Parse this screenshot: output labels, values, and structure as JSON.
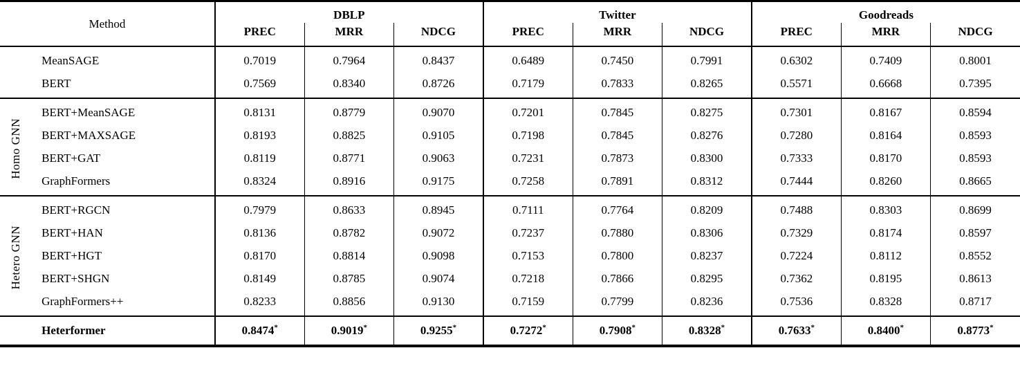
{
  "header": {
    "method_label": "Method",
    "datasets": [
      "DBLP",
      "Twitter",
      "Goodreads"
    ],
    "metrics": [
      "PREC",
      "MRR",
      "NDCG"
    ]
  },
  "star": "*",
  "sections": [
    {
      "group_label": "",
      "rows": [
        {
          "method": "MeanSAGE",
          "bold": false,
          "starred": false,
          "values": [
            "0.7019",
            "0.7964",
            "0.8437",
            "0.6489",
            "0.7450",
            "0.7991",
            "0.6302",
            "0.7409",
            "0.8001"
          ]
        },
        {
          "method": "BERT",
          "bold": false,
          "starred": false,
          "values": [
            "0.7569",
            "0.8340",
            "0.8726",
            "0.7179",
            "0.7833",
            "0.8265",
            "0.5571",
            "0.6668",
            "0.7395"
          ]
        }
      ]
    },
    {
      "group_label": "Homo GNN",
      "rows": [
        {
          "method": "BERT+MeanSAGE",
          "bold": false,
          "starred": false,
          "values": [
            "0.8131",
            "0.8779",
            "0.9070",
            "0.7201",
            "0.7845",
            "0.8275",
            "0.7301",
            "0.8167",
            "0.8594"
          ]
        },
        {
          "method": "BERT+MAXSAGE",
          "bold": false,
          "starred": false,
          "values": [
            "0.8193",
            "0.8825",
            "0.9105",
            "0.7198",
            "0.7845",
            "0.8276",
            "0.7280",
            "0.8164",
            "0.8593"
          ]
        },
        {
          "method": "BERT+GAT",
          "bold": false,
          "starred": false,
          "values": [
            "0.8119",
            "0.8771",
            "0.9063",
            "0.7231",
            "0.7873",
            "0.8300",
            "0.7333",
            "0.8170",
            "0.8593"
          ]
        },
        {
          "method": "GraphFormers",
          "bold": false,
          "starred": false,
          "values": [
            "0.8324",
            "0.8916",
            "0.9175",
            "0.7258",
            "0.7891",
            "0.8312",
            "0.7444",
            "0.8260",
            "0.8665"
          ]
        }
      ]
    },
    {
      "group_label": "Hetero GNN",
      "rows": [
        {
          "method": "BERT+RGCN",
          "bold": false,
          "starred": false,
          "values": [
            "0.7979",
            "0.8633",
            "0.8945",
            "0.7111",
            "0.7764",
            "0.8209",
            "0.7488",
            "0.8303",
            "0.8699"
          ]
        },
        {
          "method": "BERT+HAN",
          "bold": false,
          "starred": false,
          "values": [
            "0.8136",
            "0.8782",
            "0.9072",
            "0.7237",
            "0.7880",
            "0.8306",
            "0.7329",
            "0.8174",
            "0.8597"
          ]
        },
        {
          "method": "BERT+HGT",
          "bold": false,
          "starred": false,
          "values": [
            "0.8170",
            "0.8814",
            "0.9098",
            "0.7153",
            "0.7800",
            "0.8237",
            "0.7224",
            "0.8112",
            "0.8552"
          ]
        },
        {
          "method": "BERT+SHGN",
          "bold": false,
          "starred": false,
          "values": [
            "0.8149",
            "0.8785",
            "0.9074",
            "0.7218",
            "0.7866",
            "0.8295",
            "0.7362",
            "0.8195",
            "0.8613"
          ]
        },
        {
          "method": "GraphFormers++",
          "bold": false,
          "starred": false,
          "values": [
            "0.8233",
            "0.8856",
            "0.9130",
            "0.7159",
            "0.7799",
            "0.8236",
            "0.7536",
            "0.8328",
            "0.8717"
          ]
        }
      ]
    },
    {
      "group_label": "",
      "rows": [
        {
          "method": "Heterformer",
          "bold": true,
          "starred": true,
          "values": [
            "0.8474",
            "0.9019",
            "0.9255",
            "0.7272",
            "0.7908",
            "0.8328",
            "0.7633",
            "0.8400",
            "0.8773"
          ]
        }
      ]
    }
  ]
}
